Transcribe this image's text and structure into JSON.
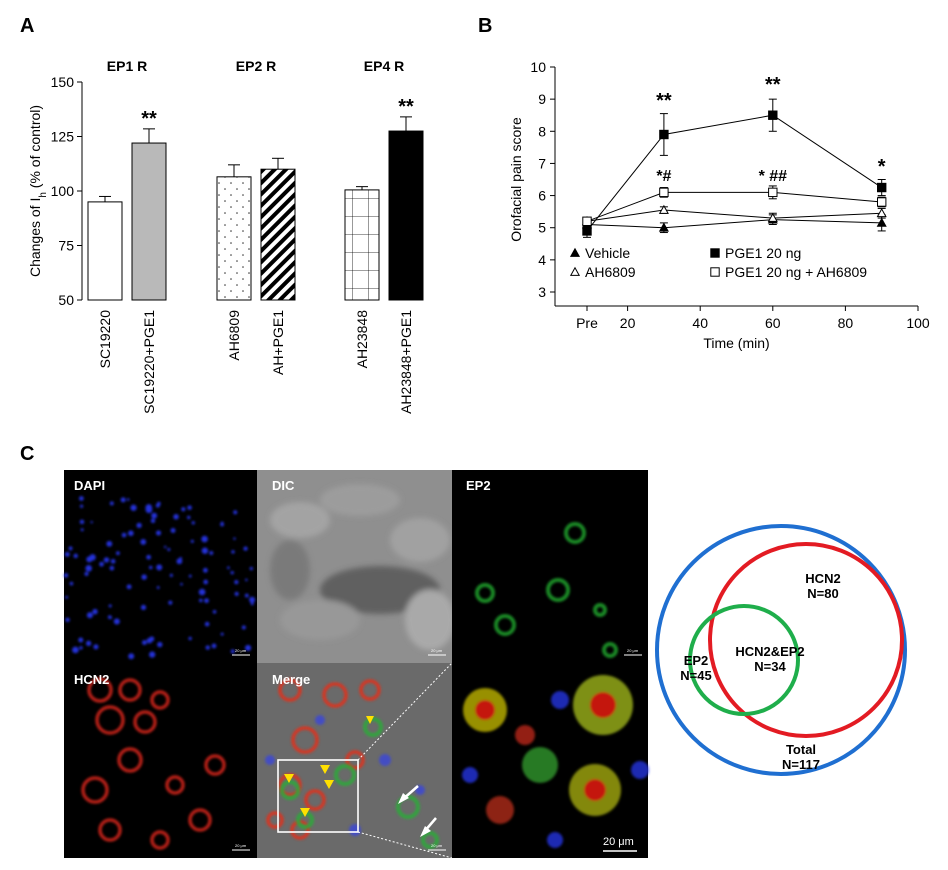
{
  "panels": {
    "a": "A",
    "b": "B",
    "c": "C"
  },
  "chart_data": [
    {
      "type": "bar",
      "panel": "A",
      "ylabel_main": "Changes of I",
      "ylabel_sub": "h",
      "ylabel_tail": " (% of control)",
      "ylim": [
        50,
        150
      ],
      "yticks": [
        50,
        75,
        100,
        125,
        150
      ],
      "groups": [
        {
          "title": "EP1 R",
          "bars": [
            {
              "label": "SC19220",
              "value": 95,
              "err": 2.5,
              "sig": "",
              "fill": "white"
            },
            {
              "label": "SC19220+PGE1",
              "value": 122,
              "err": 6.5,
              "sig": "**",
              "fill": "gray"
            }
          ]
        },
        {
          "title": "EP2 R",
          "bars": [
            {
              "label": "AH6809",
              "value": 106.5,
              "err": 5.5,
              "sig": "",
              "fill": "dots"
            },
            {
              "label": "AH+PGE1",
              "value": 110,
              "err": 5,
              "sig": "",
              "fill": "stripes"
            }
          ]
        },
        {
          "title": "EP4 R",
          "bars": [
            {
              "label": "AH23848",
              "value": 100.5,
              "err": 1.5,
              "sig": "",
              "fill": "grid"
            },
            {
              "label": "AH23848+PGE1",
              "value": 127.5,
              "err": 6.5,
              "sig": "**",
              "fill": "black"
            }
          ]
        }
      ]
    },
    {
      "type": "line",
      "panel": "B",
      "xlabel": "Time (min)",
      "ylabel": "Orofacial pain score",
      "xlim": [
        0,
        100
      ],
      "ylim": [
        3,
        10
      ],
      "xtick_labels": [
        "Pre",
        "20",
        "40",
        "60",
        "80",
        "100"
      ],
      "xtick_values": [
        0,
        20,
        40,
        60,
        80,
        100
      ],
      "yticks": [
        3,
        4,
        5,
        6,
        7,
        8,
        9,
        10
      ],
      "x": [
        0,
        30,
        60,
        90
      ],
      "series": [
        {
          "name": "Vehicle",
          "marker": "triangle-filled",
          "values": [
            5.1,
            5.0,
            5.25,
            5.15
          ],
          "err": [
            0.1,
            0.15,
            0.15,
            0.25
          ]
        },
        {
          "name": "AH6809",
          "marker": "triangle-open",
          "values": [
            5.2,
            5.55,
            5.3,
            5.45
          ],
          "err": [
            0.1,
            0.1,
            0.15,
            0.15
          ]
        },
        {
          "name": "PGE1 20 ng",
          "marker": "square-filled",
          "values": [
            4.9,
            7.9,
            8.5,
            6.25
          ],
          "err": [
            0.2,
            0.65,
            0.5,
            0.25
          ]
        },
        {
          "name": "PGE1 20 ng + AH6809",
          "marker": "square-open",
          "values": [
            5.2,
            6.1,
            6.1,
            5.8
          ],
          "err": [
            0.1,
            0.15,
            0.2,
            0.15
          ]
        }
      ],
      "annotations": [
        {
          "x": 30,
          "y": 8.75,
          "text": "**"
        },
        {
          "x": 60,
          "y": 9.25,
          "text": "**"
        },
        {
          "x": 90,
          "y": 6.7,
          "text": "*"
        },
        {
          "x": 30,
          "y": 6.45,
          "text": "*#"
        },
        {
          "x": 60,
          "y": 6.45,
          "text": "* ##"
        }
      ]
    }
  ],
  "micrographs": {
    "tiles": [
      {
        "label": "DAPI",
        "scale": "20 μm"
      },
      {
        "label": "DIC",
        "scale": "20 μm"
      },
      {
        "label": "EP2",
        "scale": "20 μm"
      },
      {
        "label": "HCN2",
        "scale": "20 μm"
      },
      {
        "label": "Merge",
        "scale": "20 μm"
      },
      {
        "label": "",
        "scale": "20 μm"
      }
    ]
  },
  "venn": {
    "hcn2": {
      "name": "HCN2",
      "n": "N=80"
    },
    "overlap": {
      "name": "HCN2&EP2",
      "n": "N=34"
    },
    "ep2": {
      "name": "EP2",
      "n": "N=45"
    },
    "total": {
      "name": "Total",
      "n": "N=117"
    },
    "colors": {
      "total": "#1f6fd1",
      "hcn2": "#e31b23",
      "ep2": "#1fae4b"
    }
  }
}
